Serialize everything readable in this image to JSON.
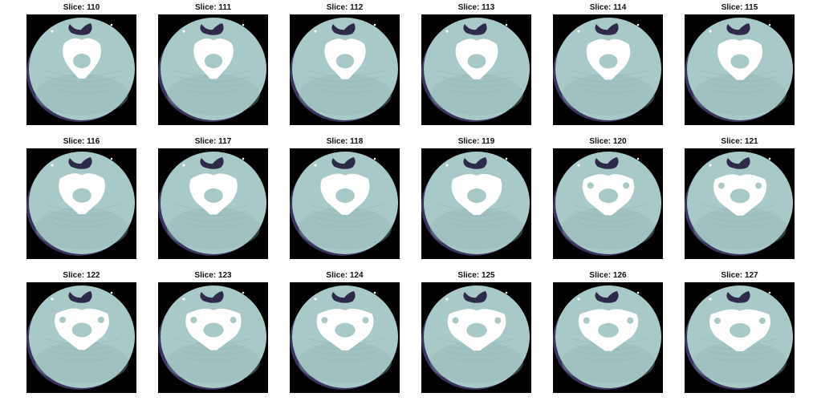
{
  "figure": {
    "panels": [
      {
        "title": "Slice: 110",
        "slice": 110
      },
      {
        "title": "Slice: 111",
        "slice": 111
      },
      {
        "title": "Slice: 112",
        "slice": 112
      },
      {
        "title": "Slice: 113",
        "slice": 113
      },
      {
        "title": "Slice: 114",
        "slice": 114
      },
      {
        "title": "Slice: 115",
        "slice": 115
      },
      {
        "title": "Slice: 116",
        "slice": 116
      },
      {
        "title": "Slice: 117",
        "slice": 117
      },
      {
        "title": "Slice: 118",
        "slice": 118
      },
      {
        "title": "Slice: 119",
        "slice": 119
      },
      {
        "title": "Slice: 120",
        "slice": 120
      },
      {
        "title": "Slice: 121",
        "slice": 121
      },
      {
        "title": "Slice: 122",
        "slice": 122
      },
      {
        "title": "Slice: 123",
        "slice": 123
      },
      {
        "title": "Slice: 124",
        "slice": 124
      },
      {
        "title": "Slice: 125",
        "slice": 125
      },
      {
        "title": "Slice: 126",
        "slice": 126
      },
      {
        "title": "Slice: 127",
        "slice": 127
      }
    ],
    "colors": {
      "background": "#000000",
      "tissue": "#a9c9c8",
      "tissue_dark": "#8fb3b3",
      "bone": "#ffffff",
      "airway": "#2e2a4a",
      "edge": "#3a3560"
    }
  }
}
